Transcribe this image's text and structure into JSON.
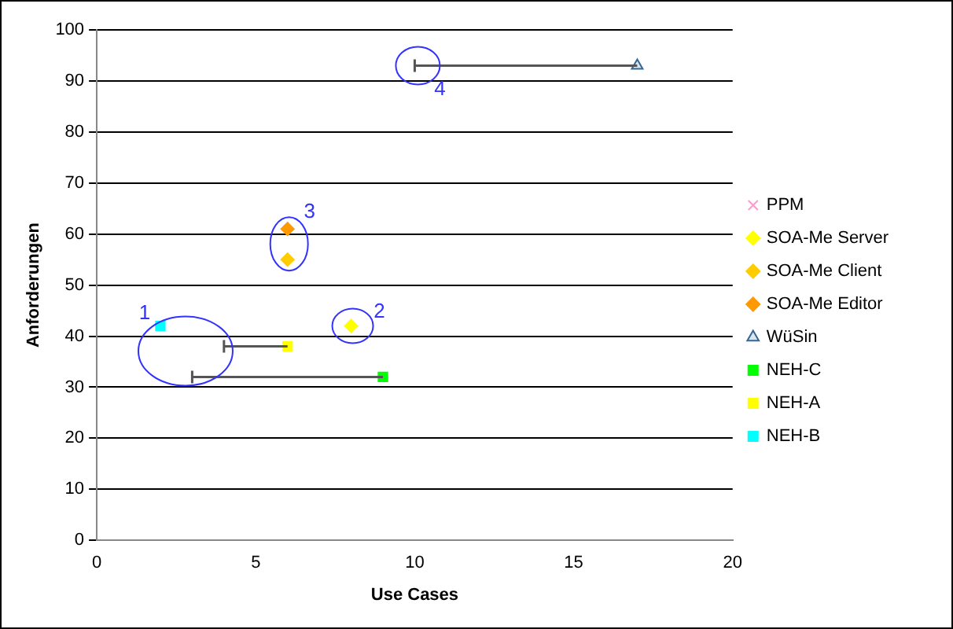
{
  "chart_data": {
    "type": "scatter",
    "xlabel": "Use Cases",
    "ylabel": "Anforderungen",
    "xlim": [
      0,
      20
    ],
    "xticks": [
      0,
      5,
      10,
      15,
      20
    ],
    "ylim": [
      0,
      100
    ],
    "yticks": [
      0,
      10,
      20,
      30,
      40,
      50,
      60,
      70,
      80,
      90,
      100
    ],
    "grid": "y",
    "legend": "right",
    "series": [
      {
        "name": "PPM",
        "color": "#ff99cc",
        "marker": "cross"
      },
      {
        "name": "SOA-Me Server",
        "color": "#ffff00",
        "marker": "diamond",
        "x": [
          8
        ],
        "values": [
          42
        ]
      },
      {
        "name": "SOA-Me Client",
        "color": "#ffcc00",
        "marker": "diamond",
        "x": [
          6
        ],
        "values": [
          55
        ]
      },
      {
        "name": "SOA-Me Editor",
        "color": "#ff9900",
        "marker": "diamond",
        "x": [
          6
        ],
        "values": [
          61
        ]
      },
      {
        "name": "WüSin",
        "color": "#336699",
        "marker": "triangle",
        "x": [
          17
        ],
        "values": [
          93
        ],
        "xerrors": [
          [
            10,
            17
          ]
        ]
      },
      {
        "name": "NEH-C",
        "color": "#00ff00",
        "marker": "square",
        "x": [
          9
        ],
        "values": [
          32
        ],
        "xerrors": [
          [
            3,
            9
          ]
        ]
      },
      {
        "name": "NEH-A",
        "color": "#ffff00",
        "marker": "square",
        "x": [
          6
        ],
        "values": [
          38
        ],
        "xerrors": [
          [
            4,
            6
          ]
        ]
      },
      {
        "name": "NEH-B",
        "color": "#00ffff",
        "marker": "square",
        "x": [
          2
        ],
        "values": [
          42
        ]
      }
    ],
    "annotations": [
      {
        "text": "1",
        "x": 2,
        "y": 42
      },
      {
        "text": "2",
        "x": 8,
        "y": 42
      },
      {
        "text": "3",
        "x": 6,
        "y": 55
      },
      {
        "text": "4",
        "x": 10,
        "y": 93
      }
    ]
  }
}
